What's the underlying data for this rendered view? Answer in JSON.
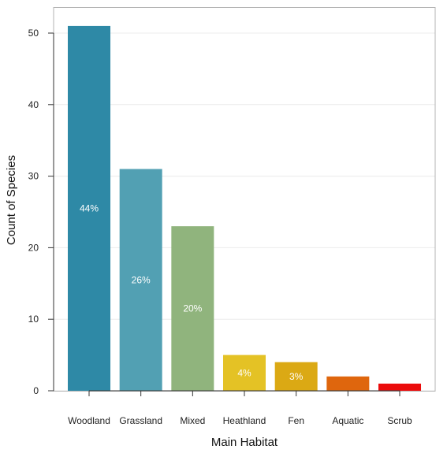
{
  "chart_data": {
    "type": "bar",
    "xlabel": "Main Habitat",
    "ylabel": "Count of Species",
    "categories": [
      "Woodland",
      "Grassland",
      "Mixed",
      "Heathland",
      "Fen",
      "Aquatic",
      "Scrub"
    ],
    "values": [
      51,
      31,
      23,
      5,
      4,
      2,
      1
    ],
    "percent_labels": [
      "44%",
      "26%",
      "20%",
      "4%",
      "3%",
      "",
      ""
    ],
    "colors": [
      "#2e89a6",
      "#52a0b3",
      "#90b47d",
      "#e4c225",
      "#dba914",
      "#df660d",
      "#eb0b0b"
    ],
    "ylim": [
      0,
      53
    ],
    "yticks": [
      0,
      10,
      20,
      30,
      40,
      50
    ],
    "grid": true,
    "legend": "none"
  }
}
